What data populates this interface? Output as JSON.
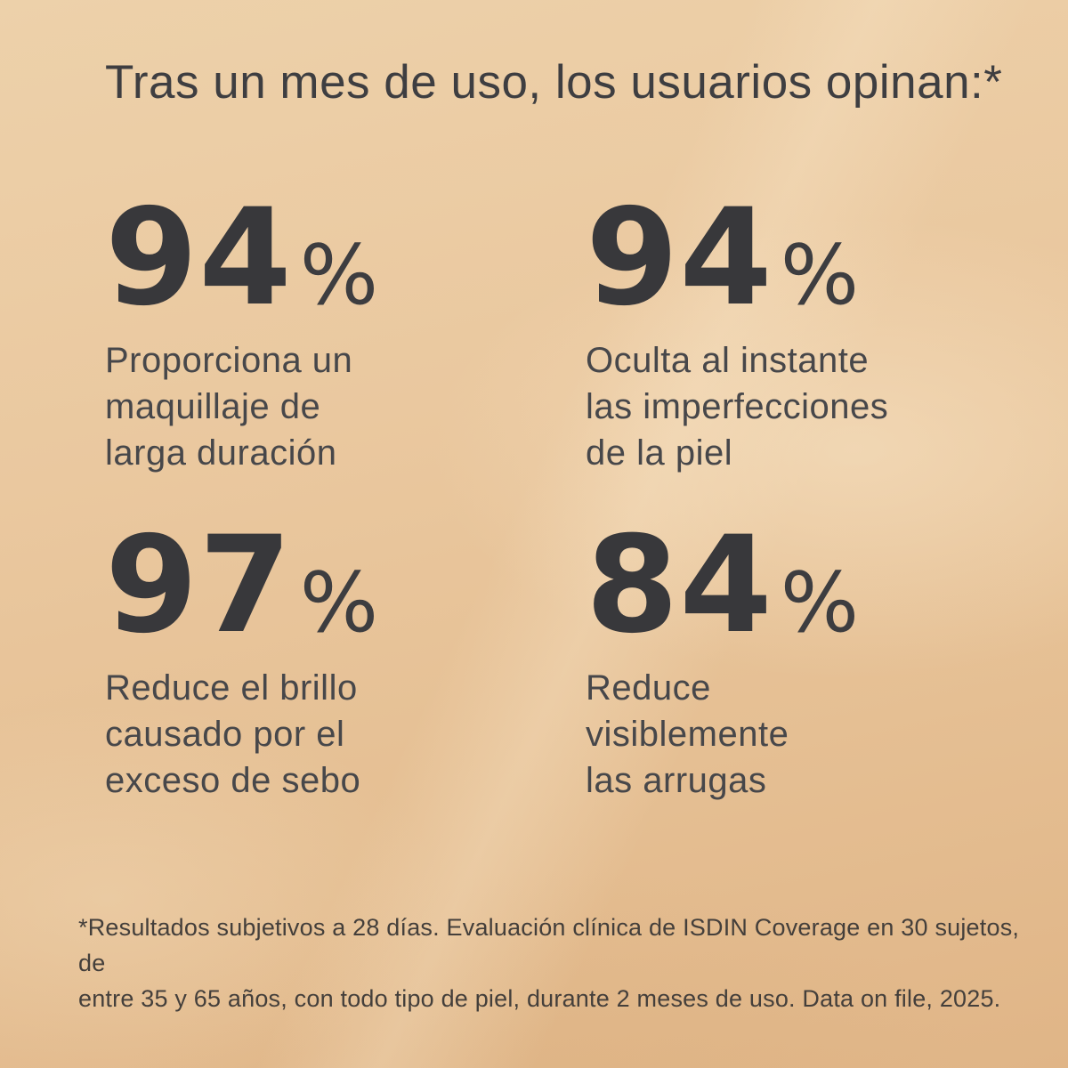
{
  "title": "Tras un mes de uso, los usuarios opinan:*",
  "stats": [
    {
      "value": "94",
      "percent_sign": "%",
      "description": "Proporciona un\nmaquillaje de\nlarga duración"
    },
    {
      "value": "94",
      "percent_sign": "%",
      "description": "Oculta al instante\nlas imperfecciones\nde la piel"
    },
    {
      "value": "97",
      "percent_sign": "%",
      "description": "Reduce el brillo\ncausado por el\nexceso de sebo"
    },
    {
      "value": "84",
      "percent_sign": "%",
      "description": "Reduce\nvisiblemente\nlas arrugas"
    }
  ],
  "footnote": "*Resultados subjetivos a 28 días. Evaluación clínica de ISDIN Coverage en 30 sujetos, de\nentre 35 y 65 años, con todo tipo de piel, durante 2 meses de uso. Data on file, 2025.",
  "colors": {
    "background_top": "#ecd0a8",
    "background_bottom": "#e0b587",
    "number_text": "#38383b",
    "body_text": "#47474a",
    "footnote_text": "#443f3b"
  }
}
